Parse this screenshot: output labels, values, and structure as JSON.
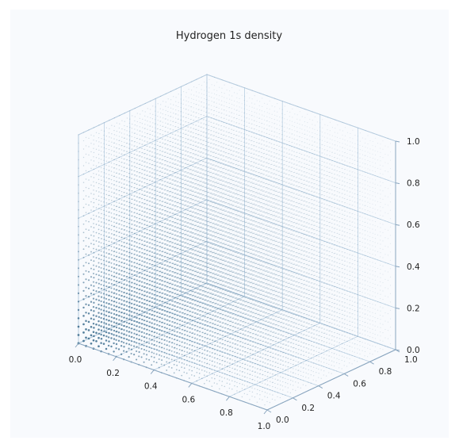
{
  "chart_data": {
    "type": "scatter3d",
    "title": "Hydrogen 1s density",
    "xlabel": "",
    "ylabel": "",
    "zlabel": "",
    "xlim": [
      0,
      1
    ],
    "ylim": [
      0,
      1
    ],
    "zlim": [
      0,
      1
    ],
    "xticks": [
      "0.0",
      "0.2",
      "0.4",
      "0.6",
      "0.8",
      "1.0"
    ],
    "yticks": [
      "0.0",
      "0.2",
      "0.4",
      "0.6",
      "0.8",
      "1.0"
    ],
    "zticks": [
      "0.0",
      "0.2",
      "0.4",
      "0.6",
      "0.8",
      "1.0"
    ],
    "grid": true,
    "colors": {
      "points": "#4a7796",
      "grid": "#b9cfe2",
      "pane": "#f8fafd",
      "axis": "#8aa6bf"
    },
    "sampling": {
      "grid_points_per_axis": 26,
      "range": [
        0,
        1
      ],
      "density_function": "exp(-2r), r = distance from origin",
      "point_opacity": "proportional to density"
    }
  }
}
